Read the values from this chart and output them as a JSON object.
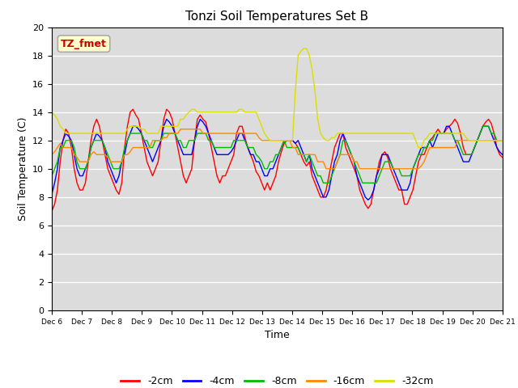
{
  "title": "Tonzi Soil Temperatures Set B",
  "xlabel": "Time",
  "ylabel": "Soil Temperature (C)",
  "ylim": [
    0,
    20
  ],
  "bg_color": "#dcdcdc",
  "annotation_text": "TZ_fmet",
  "annotation_color": "#cc0000",
  "annotation_bg": "#ffffcc",
  "annotation_border": "#aaaaaa",
  "x_tick_labels": [
    "Dec 6",
    "Dec 7",
    "Dec 8",
    "Dec 9",
    "Dec 10",
    "Dec 11",
    "Dec 12",
    "Dec 13",
    "Dec 14",
    "Dec 15",
    "Dec 16",
    "Dec 17",
    "Dec 18",
    "Dec 19",
    "Dec 20",
    "Dec 21"
  ],
  "legend_labels": [
    "-2cm",
    "-4cm",
    "-8cm",
    "-16cm",
    "-32cm"
  ],
  "line_colors": [
    "#ff0000",
    "#0000ff",
    "#00bb00",
    "#ff8800",
    "#dddd00"
  ],
  "series": {
    "m2cm": [
      7.0,
      7.5,
      8.5,
      10.5,
      12.0,
      12.8,
      12.5,
      11.5,
      10.0,
      9.0,
      8.5,
      8.5,
      9.0,
      10.5,
      12.0,
      13.0,
      13.5,
      13.0,
      12.0,
      11.0,
      10.0,
      9.5,
      9.0,
      8.5,
      8.2,
      9.0,
      11.5,
      13.0,
      14.0,
      14.2,
      13.8,
      13.5,
      12.5,
      11.5,
      10.5,
      10.0,
      9.5,
      10.0,
      10.5,
      12.0,
      13.5,
      14.2,
      14.0,
      13.5,
      12.5,
      11.5,
      10.5,
      9.5,
      9.0,
      9.5,
      10.0,
      12.0,
      13.5,
      13.8,
      13.5,
      13.3,
      12.5,
      11.5,
      10.5,
      9.5,
      9.0,
      9.5,
      9.5,
      10.0,
      10.5,
      11.0,
      12.5,
      13.0,
      13.0,
      12.2,
      11.5,
      11.0,
      10.5,
      9.8,
      9.5,
      9.0,
      8.5,
      9.0,
      8.5,
      9.0,
      9.5,
      10.5,
      11.2,
      11.8,
      12.0,
      12.0,
      12.0,
      11.8,
      11.5,
      11.0,
      10.5,
      10.2,
      10.5,
      9.5,
      9.0,
      8.5,
      8.0,
      8.0,
      8.5,
      9.5,
      10.5,
      11.5,
      12.0,
      12.5,
      12.5,
      11.5,
      11.0,
      10.5,
      10.0,
      9.5,
      8.5,
      8.0,
      7.5,
      7.2,
      7.5,
      8.5,
      9.5,
      10.5,
      11.0,
      11.2,
      10.8,
      10.0,
      9.5,
      9.0,
      8.5,
      8.5,
      7.5,
      7.5,
      8.0,
      8.5,
      9.5,
      10.5,
      11.0,
      11.0,
      11.5,
      12.0,
      12.2,
      12.5,
      12.8,
      12.5,
      12.5,
      12.8,
      13.0,
      13.2,
      13.5,
      13.2,
      12.5,
      11.5,
      11.0,
      11.0,
      11.0,
      11.5,
      12.0,
      12.5,
      13.0,
      13.3,
      13.5,
      13.2,
      12.5,
      11.5,
      11.0,
      10.8
    ],
    "m4cm": [
      8.2,
      9.0,
      10.0,
      11.5,
      12.0,
      12.5,
      12.3,
      12.0,
      11.0,
      10.0,
      9.5,
      9.5,
      10.0,
      10.5,
      11.5,
      12.0,
      12.5,
      12.3,
      12.0,
      11.5,
      10.5,
      10.0,
      9.5,
      9.0,
      9.5,
      10.5,
      11.0,
      12.0,
      12.5,
      13.0,
      13.0,
      12.8,
      12.5,
      12.0,
      11.5,
      11.0,
      10.5,
      11.0,
      11.5,
      12.0,
      13.0,
      13.5,
      13.3,
      13.0,
      12.5,
      12.0,
      11.5,
      11.0,
      11.0,
      11.0,
      11.0,
      12.0,
      13.0,
      13.5,
      13.3,
      13.0,
      12.5,
      12.0,
      11.5,
      11.0,
      11.0,
      11.0,
      11.0,
      11.0,
      11.2,
      11.5,
      12.0,
      12.5,
      12.5,
      12.0,
      11.5,
      11.0,
      11.0,
      10.5,
      10.5,
      10.0,
      9.5,
      9.5,
      10.0,
      10.0,
      10.5,
      11.0,
      11.5,
      12.0,
      12.0,
      12.0,
      12.0,
      11.8,
      12.0,
      11.5,
      11.0,
      10.5,
      11.0,
      10.0,
      9.5,
      9.0,
      8.5,
      8.0,
      8.0,
      8.5,
      9.5,
      10.5,
      11.0,
      12.0,
      12.5,
      12.0,
      11.5,
      11.0,
      10.5,
      9.5,
      9.0,
      8.5,
      8.0,
      7.8,
      8.0,
      8.5,
      9.5,
      10.0,
      11.0,
      11.0,
      11.0,
      10.5,
      10.0,
      9.5,
      9.0,
      8.5,
      8.5,
      8.5,
      9.0,
      10.0,
      10.5,
      11.0,
      11.5,
      11.5,
      11.5,
      12.0,
      11.5,
      12.0,
      12.5,
      12.5,
      12.5,
      13.0,
      13.0,
      12.5,
      12.0,
      11.5,
      11.0,
      10.5,
      10.5,
      10.5,
      11.0,
      11.5,
      12.0,
      12.5,
      13.0,
      13.0,
      13.0,
      12.5,
      12.0,
      11.5,
      11.2,
      11.0
    ],
    "m8cm": [
      9.5,
      10.0,
      10.5,
      11.5,
      11.5,
      12.0,
      12.0,
      12.0,
      11.5,
      10.5,
      10.0,
      10.0,
      10.0,
      10.5,
      11.5,
      12.0,
      12.0,
      12.0,
      12.0,
      11.5,
      11.0,
      10.5,
      10.0,
      10.0,
      10.0,
      10.5,
      11.5,
      12.0,
      12.5,
      12.5,
      12.5,
      12.5,
      12.5,
      12.0,
      12.0,
      11.5,
      11.5,
      12.0,
      12.0,
      12.0,
      12.5,
      12.5,
      12.5,
      12.5,
      12.5,
      12.0,
      12.0,
      11.5,
      11.5,
      12.0,
      12.0,
      12.0,
      12.5,
      12.5,
      12.5,
      12.5,
      12.0,
      12.0,
      11.5,
      11.5,
      11.5,
      11.5,
      11.5,
      11.5,
      11.5,
      12.0,
      12.0,
      12.0,
      12.0,
      12.0,
      11.5,
      11.5,
      11.5,
      11.0,
      10.8,
      10.5,
      10.0,
      10.0,
      10.5,
      10.5,
      11.0,
      11.0,
      11.5,
      12.0,
      11.5,
      11.5,
      11.5,
      11.5,
      11.5,
      11.0,
      11.0,
      10.5,
      11.0,
      10.5,
      10.0,
      9.5,
      9.5,
      9.0,
      9.0,
      9.0,
      9.5,
      10.0,
      10.5,
      11.0,
      12.0,
      12.0,
      11.5,
      11.0,
      10.5,
      10.0,
      9.5,
      9.0,
      9.0,
      9.0,
      9.0,
      9.0,
      9.0,
      9.5,
      10.0,
      10.5,
      10.5,
      10.5,
      10.0,
      10.0,
      10.0,
      9.5,
      9.5,
      9.5,
      9.5,
      10.0,
      10.5,
      11.0,
      11.0,
      11.5,
      11.5,
      12.0,
      12.0,
      12.5,
      12.5,
      12.5,
      12.5,
      12.5,
      12.5,
      12.5,
      12.0,
      12.0,
      11.5,
      11.0,
      11.0,
      11.0,
      11.0,
      11.5,
      12.0,
      12.5,
      13.0,
      13.0,
      13.0,
      12.5,
      12.5,
      12.0,
      12.0,
      12.0
    ],
    "m16cm": [
      11.0,
      11.2,
      11.5,
      11.8,
      11.5,
      11.5,
      11.5,
      11.5,
      11.0,
      10.8,
      10.5,
      10.5,
      10.5,
      10.5,
      11.0,
      11.2,
      11.0,
      11.0,
      11.0,
      11.0,
      10.8,
      10.5,
      10.5,
      10.5,
      10.5,
      10.5,
      11.0,
      11.0,
      11.2,
      11.5,
      11.5,
      11.5,
      11.5,
      11.5,
      11.5,
      11.5,
      12.0,
      12.0,
      12.0,
      12.0,
      12.2,
      12.2,
      12.5,
      12.5,
      12.5,
      12.5,
      12.8,
      12.8,
      12.8,
      12.8,
      12.8,
      12.8,
      12.8,
      12.8,
      12.5,
      12.5,
      12.5,
      12.5,
      12.5,
      12.5,
      12.5,
      12.5,
      12.5,
      12.5,
      12.5,
      12.5,
      12.5,
      12.5,
      12.5,
      12.5,
      12.5,
      12.5,
      12.5,
      12.5,
      12.2,
      12.0,
      12.0,
      12.0,
      12.0,
      12.0,
      12.0,
      12.0,
      12.0,
      12.0,
      12.0,
      12.0,
      11.5,
      11.5,
      11.0,
      11.0,
      11.0,
      11.0,
      11.0,
      11.0,
      11.0,
      10.5,
      10.5,
      10.5,
      10.0,
      10.0,
      10.0,
      10.0,
      10.5,
      11.0,
      11.0,
      11.0,
      11.0,
      11.0,
      10.5,
      10.5,
      10.0,
      10.0,
      10.0,
      10.0,
      10.0,
      10.0,
      10.0,
      10.0,
      10.0,
      10.0,
      10.0,
      10.0,
      10.0,
      10.0,
      10.0,
      10.0,
      10.0,
      10.0,
      10.0,
      10.0,
      10.0,
      10.0,
      10.2,
      10.5,
      11.0,
      11.5,
      11.5,
      11.5,
      11.5,
      11.5,
      11.5,
      11.5,
      11.5,
      11.5,
      11.5,
      12.0,
      12.0,
      12.0,
      12.0,
      12.0,
      12.0,
      12.0,
      12.0,
      12.0,
      12.0,
      12.0,
      12.0,
      12.0,
      12.0,
      12.0,
      12.0,
      12.0
    ],
    "m32cm": [
      14.0,
      13.8,
      13.5,
      13.0,
      12.8,
      12.5,
      12.5,
      12.5,
      12.5,
      12.5,
      12.5,
      12.5,
      12.5,
      12.5,
      12.5,
      12.5,
      12.5,
      12.5,
      12.5,
      12.5,
      12.5,
      12.5,
      12.5,
      12.5,
      12.5,
      12.5,
      12.5,
      12.8,
      13.0,
      13.0,
      13.0,
      13.0,
      12.8,
      12.8,
      12.5,
      12.5,
      12.5,
      12.5,
      12.5,
      13.0,
      13.0,
      13.0,
      13.0,
      13.0,
      13.0,
      13.0,
      13.5,
      13.5,
      13.8,
      14.0,
      14.2,
      14.2,
      14.0,
      14.0,
      14.0,
      14.0,
      14.0,
      14.0,
      14.0,
      14.0,
      14.0,
      14.0,
      14.0,
      14.0,
      14.0,
      14.0,
      14.0,
      14.2,
      14.2,
      14.0,
      14.0,
      14.0,
      14.0,
      14.0,
      13.5,
      13.0,
      12.5,
      12.2,
      12.0,
      12.0,
      12.0,
      12.0,
      12.0,
      12.0,
      12.0,
      12.0,
      12.0,
      15.5,
      18.0,
      18.3,
      18.5,
      18.5,
      18.0,
      17.0,
      15.5,
      13.5,
      12.5,
      12.2,
      12.0,
      12.0,
      12.2,
      12.2,
      12.5,
      12.5,
      12.5,
      12.5,
      12.5,
      12.5,
      12.5,
      12.5,
      12.5,
      12.5,
      12.5,
      12.5,
      12.5,
      12.5,
      12.5,
      12.5,
      12.5,
      12.5,
      12.5,
      12.5,
      12.5,
      12.5,
      12.5,
      12.5,
      12.5,
      12.5,
      12.5,
      12.5,
      12.0,
      11.5,
      11.5,
      12.0,
      12.2,
      12.5,
      12.5,
      12.5,
      12.5,
      12.5,
      12.5,
      12.5,
      12.5,
      12.5,
      12.5,
      12.5,
      12.5,
      12.5,
      12.2,
      12.0,
      12.0,
      12.0,
      12.0,
      12.0,
      12.0,
      12.0,
      12.0,
      12.0,
      12.0,
      12.0,
      12.0,
      12.0
    ]
  }
}
